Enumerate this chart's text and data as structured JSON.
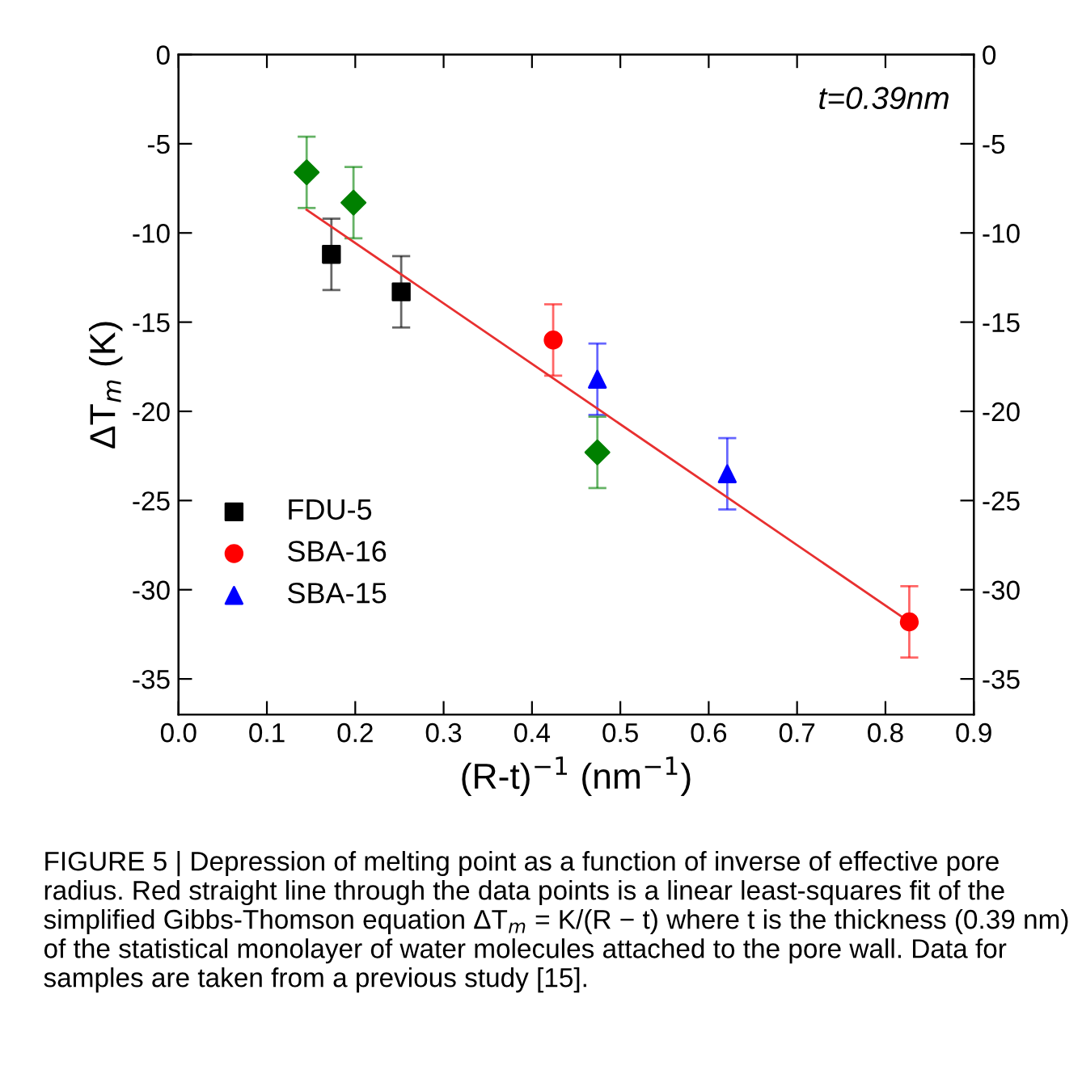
{
  "chart_data": {
    "type": "scatter",
    "xlabel": "(R-t)$^{−1}$ (nm$^{−1}$)",
    "ylabel": "ΔT$_{m}$ (K)",
    "xlim": [
      0,
      0.9
    ],
    "xticks": [
      {
        "value": 0,
        "label": "0.0"
      },
      0.1,
      0.2,
      0.3,
      0.4,
      0.5,
      0.6,
      0.7,
      0.8,
      0.9
    ],
    "ylim": [
      -37,
      0
    ],
    "yticks": [
      0,
      -5,
      -10,
      -15,
      -20,
      -25,
      -30,
      -35
    ],
    "y2lim": [
      -37,
      0
    ],
    "y2ticks": [
      0,
      -5,
      -10,
      -15,
      -20,
      -25,
      -30,
      -35
    ],
    "legend": "bottom left",
    "grid": false,
    "series": [
      {
        "name": "FDU-5",
        "color": "#000000",
        "marker": "square",
        "x": [
          0.173,
          0.252
        ],
        "values": [
          -11.2,
          -13.3
        ],
        "errors": [
          2.0,
          2.0
        ]
      },
      {
        "name": "SBA-16",
        "color": "#ff0000",
        "marker": "circle",
        "x": [
          0.424,
          0.827
        ],
        "values": [
          -16.0,
          -31.8
        ],
        "errors": [
          2.0,
          2.0
        ]
      },
      {
        "name": "SBA-15",
        "color": "#0000ff",
        "marker": "triangle",
        "x": [
          0.474,
          0.621
        ],
        "values": [
          -18.2,
          -23.5
        ],
        "errors": [
          2.0,
          2.0
        ]
      },
      {
        "color": "#008000",
        "marker": "diamond",
        "x": [
          0.145,
          0.198,
          0.474
        ],
        "values": [
          -6.6,
          -8.3,
          -22.3
        ],
        "errors": [
          2.0,
          2.0,
          2.0
        ]
      },
      {
        "type": "line",
        "color": "#e83030",
        "marker": "none",
        "x": [
          0.145,
          0.827
        ],
        "values": [
          -8.7,
          -31.8
        ]
      }
    ],
    "annotations": [
      "t=0.39nm",
      "FIGURE 5 | Depression of melting point as a function of inverse of effective pore radius. Red straight line through the data points is a linear least-squares fit of the simplified Gibbs-Thomson equation ΔT$_{m}$ = K/(R − t) where t is the thickness (0.39 nm) of the statistical monolayer of water molecules attached to the pore wall. Data for samples are taken from a previous study [15]."
    ]
  }
}
